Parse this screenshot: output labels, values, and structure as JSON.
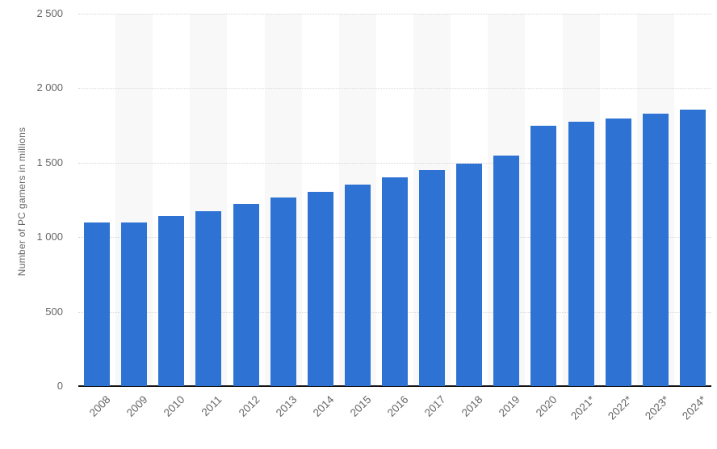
{
  "chart_data": {
    "type": "bar",
    "title": "",
    "xlabel": "",
    "ylabel": "Number of PC gamers in millions",
    "categories": [
      "2008",
      "2009",
      "2010",
      "2011",
      "2012",
      "2013",
      "2014",
      "2015",
      "2016",
      "2017",
      "2018",
      "2019",
      "2020",
      "2021*",
      "2022*",
      "2023*",
      "2024*"
    ],
    "values": [
      1098,
      1096,
      1141,
      1175,
      1222,
      1265,
      1305,
      1355,
      1402,
      1449,
      1494,
      1547,
      1748,
      1773,
      1798,
      1830,
      1856
    ],
    "ylim": [
      0,
      2500
    ],
    "ytick_step": 500,
    "ytick_labels": [
      "0",
      "500",
      "1 000",
      "1 500",
      "2 000",
      "2 500"
    ],
    "legend": "none",
    "grid": "horizontal-dotted",
    "column_stripes": "alternating",
    "colors": {
      "bar": "#2e73d4",
      "stripe": "#f8f8f9",
      "grid": "#d6d6d6",
      "axis": "#111111",
      "tick_label": "#666666",
      "axis_title": "#666666",
      "background": "#ffffff"
    }
  }
}
